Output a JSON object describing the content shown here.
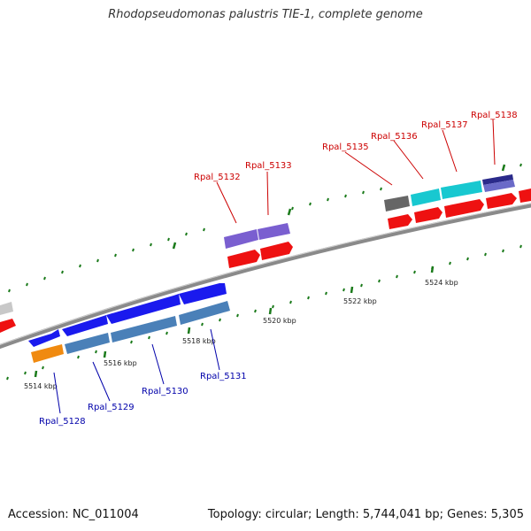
{
  "title": "Rhodopseudomonas palustris TIE-1, complete genome",
  "accession": "Accession: NC_011004",
  "topology": "Topology: circular; Length: 5,744,041 bp; Genes: 5,305",
  "colors": {
    "backbone": "#8a8a8a",
    "tick": "#1a7a1a",
    "red": "#ee1111",
    "blue": "#1a1aee",
    "steelblue": "#4a80b8",
    "orange": "#f08a10",
    "purple": "#7a5fd0",
    "cyan": "#18c8d0",
    "gray": "#666666",
    "navy": "#2a2a8a",
    "label_top": "#cc0000",
    "label_bottom": "#0000aa"
  },
  "scale_labels": [
    "5514 kbp",
    "5516 kbp",
    "5518 kbp",
    "5520 kbp",
    "5522 kbp",
    "5524 kbp"
  ],
  "gene_labels": [
    {
      "name": "Rpal_5128",
      "side": "bottom"
    },
    {
      "name": "Rpal_5129",
      "side": "bottom"
    },
    {
      "name": "Rpal_5130",
      "side": "bottom"
    },
    {
      "name": "Rpal_5131",
      "side": "bottom"
    },
    {
      "name": "Rpal_5132",
      "side": "top"
    },
    {
      "name": "Rpal_5133",
      "side": "top"
    },
    {
      "name": "Rpal_5135",
      "side": "top"
    },
    {
      "name": "Rpal_5136",
      "side": "top"
    },
    {
      "name": "Rpal_5137",
      "side": "top"
    },
    {
      "name": "Rpal_5138",
      "side": "top"
    }
  ]
}
